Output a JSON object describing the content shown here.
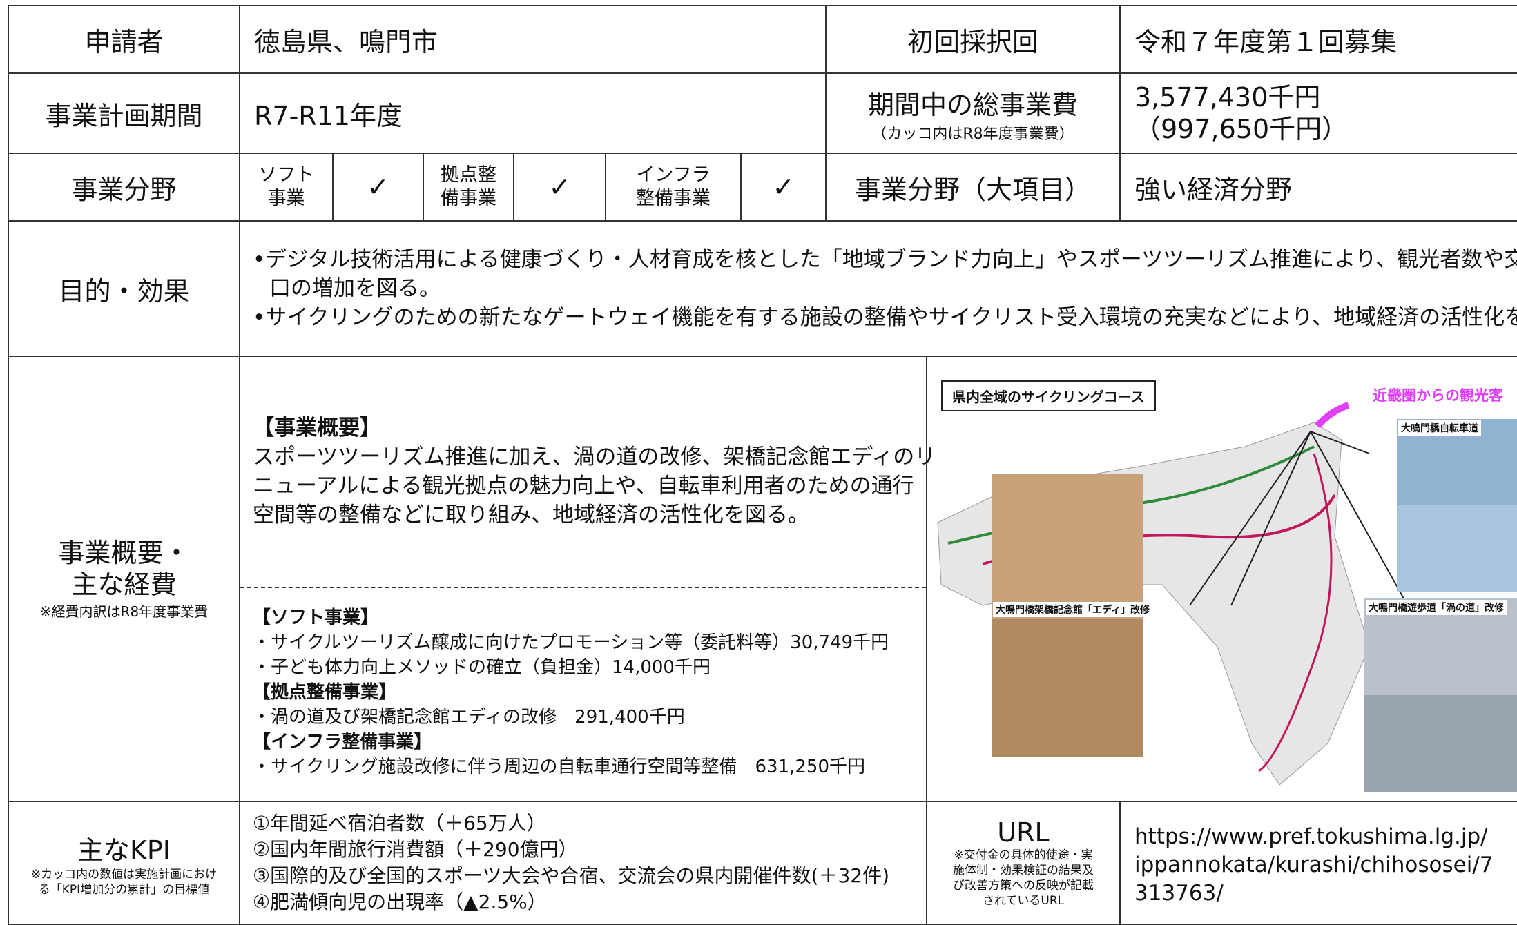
{
  "header": {
    "applicant": {
      "label": "申請者",
      "value": "徳島県、鳴門市"
    },
    "first_round": {
      "label": "初回採択回",
      "value": "令和７年度第１回募集"
    },
    "period": {
      "label": "事業計画期間",
      "value": "R7-R11年度"
    },
    "total_cost": {
      "label": "期間中の総事業費",
      "note": "（カッコ内はR8年度事業費）",
      "lines": [
        "3,577,430千円",
        "（997,650千円）"
      ]
    },
    "fields": {
      "label": "事業分野",
      "items": [
        {
          "lines": [
            "ソフト",
            "事業"
          ],
          "check": "✓"
        },
        {
          "lines": [
            "拠点整",
            "備事業"
          ],
          "check": "✓"
        },
        {
          "lines": [
            "インフラ",
            "整備事業"
          ],
          "check": "✓"
        }
      ]
    },
    "major_field": {
      "label": "事業分野（大項目）",
      "value": "強い経済分野"
    }
  },
  "purpose": {
    "label": "目的・効果",
    "bullets": [
      [
        "•デジタル技術活用による健康づくり・人材育成を核とした「地域ブランド力向上」やスポーツツーリズム推進により、観光者数や交流人",
        "口の増加を図る。"
      ],
      [
        "•サイクリングのための新たなゲートウェイ機能を有する施設の整備やサイクリスト受入環境の充実などにより、地域経済の活性化を図る。"
      ]
    ]
  },
  "overview": {
    "label": [
      "事業概要・",
      "主な経費"
    ],
    "note": "※経費内訳はR8年度事業費",
    "summary_heading": "【事業概要】",
    "summary": [
      "スポーツツーリズム推進に加え、渦の道の改修、架橋記念館エディのリ",
      "ニューアルによる観光拠点の魅力向上や、自転車利用者のための通行",
      "空間等の整備などに取り組み、地域経済の活性化を図る。"
    ],
    "breakdown": [
      {
        "heading": "【ソフト事業】",
        "items": [
          "・サイクルツーリズム醸成に向けたプロモーション等（委託料等）30,749千円",
          "・子ども体力向上メソッドの確立（負担金）14,000千円"
        ]
      },
      {
        "heading": "【拠点整備事業】",
        "items": [
          "・渦の道及び架橋記念館エディの改修　291,400千円"
        ]
      },
      {
        "heading": "【インフラ整備事業】",
        "items": [
          "・サイクリング施設改修に伴う周辺の自転車通行空間等整備　631,250千円"
        ]
      }
    ],
    "map": {
      "title": "県内全域のサイクリングコース",
      "arrow_label": "近畿圏からの観光客",
      "photo1": "大鳴門橋自転車道",
      "photo2": "大鳴門橋架橋記念館「エディ」改修",
      "photo3": "大鳴門橋遊歩道「渦の道」改修"
    }
  },
  "kpi": {
    "label": "主なKPI",
    "note": [
      "※カッコ内の数値は実施計画におけ",
      "る「KPI増加分の累計」の目標値"
    ],
    "items": [
      "①年間延べ宿泊者数（＋65万人）",
      "②国内年間旅行消費額（＋290億円）",
      "③国際的及び全国的スポーツ大会や合宿、交流会の県内開催件数(＋32件)",
      "④肥満傾向児の出現率（▲2.5%）"
    ]
  },
  "url": {
    "label": "URL",
    "note": [
      "※交付金の具体的使途・実",
      "施体制・効果検証の結果及",
      "び改善方策への反映が記載",
      "されているURL"
    ],
    "lines": [
      "https://www.pref.tokushima.lg.jp/",
      "ippannokata/kurashi/chihososei/7",
      "313763/"
    ]
  }
}
